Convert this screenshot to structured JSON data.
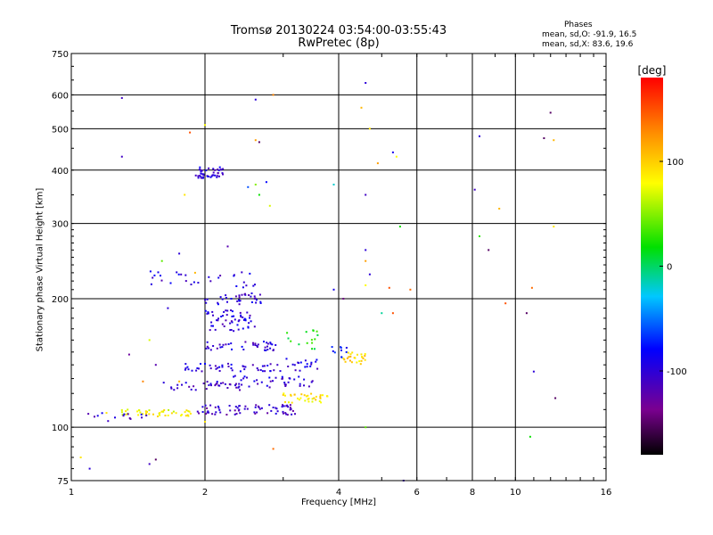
{
  "chart_data": {
    "type": "scatter",
    "title": "Tromsø 20130224 03:54:00-03:55:43",
    "subtitle": "RwPretec (8p)",
    "xlabel": "Frequency [MHz]",
    "ylabel": "Stationary phase Virtual Height [km]",
    "xscale": "log",
    "yscale": "log",
    "xlim": [
      1,
      16
    ],
    "ylim": [
      75,
      750
    ],
    "x_ticks": [
      1,
      2,
      4,
      6,
      8,
      10,
      16
    ],
    "y_ticks": [
      75,
      100,
      200,
      300,
      400,
      500,
      600,
      750
    ],
    "grid": true,
    "phase_info": {
      "heading": "Phases",
      "line1": "mean, sd,O: -91.9, 16.5",
      "line2": "mean, sd,X:  83.6, 19.6"
    },
    "colorbar": {
      "label": "[deg]",
      "range": [
        -180,
        180
      ],
      "ticks": [
        100,
        0,
        -100
      ],
      "colormap": "rainbow (black-purple-blue-cyan-green-yellow-orange-red)"
    },
    "clusters": [
      {
        "x_range": [
          1.3,
          1.9
        ],
        "y": 108,
        "y_spread": 2,
        "phase": 80,
        "n": 45
      },
      {
        "x_range": [
          1.05,
          1.5
        ],
        "y": 105,
        "y_spread": 3,
        "phase": -105,
        "n": 14
      },
      {
        "x_range": [
          1.9,
          3.2
        ],
        "y": 110,
        "y_spread": 3,
        "phase": -110,
        "n": 70
      },
      {
        "x_range": [
          3.0,
          3.8
        ],
        "y": 117,
        "y_spread": 3,
        "phase": 90,
        "n": 35
      },
      {
        "x_range": [
          1.6,
          2.4
        ],
        "y": 125,
        "y_spread": 3,
        "phase": -105,
        "n": 35
      },
      {
        "x_range": [
          2.3,
          3.5
        ],
        "y": 128,
        "y_spread": 4,
        "phase": -100,
        "n": 40
      },
      {
        "x_range": [
          1.8,
          2.8
        ],
        "y": 138,
        "y_spread": 3,
        "phase": -100,
        "n": 40
      },
      {
        "x_range": [
          2.8,
          3.6
        ],
        "y": 140,
        "y_spread": 5,
        "phase": -95,
        "n": 25
      },
      {
        "x_range": [
          2.0,
          2.9
        ],
        "y": 155,
        "y_spread": 4,
        "phase": -100,
        "n": 40
      },
      {
        "x_range": [
          2.0,
          2.6
        ],
        "y": 178,
        "y_spread": 10,
        "phase": -100,
        "n": 55
      },
      {
        "x_range": [
          2.0,
          2.7
        ],
        "y": 200,
        "y_spread": 6,
        "phase": -100,
        "n": 35
      },
      {
        "x_range": [
          1.5,
          2.6
        ],
        "y": 222,
        "y_spread": 10,
        "phase": -100,
        "n": 30
      },
      {
        "x_range": [
          1.9,
          2.2
        ],
        "y": 395,
        "y_spread": 12,
        "phase": -100,
        "n": 45
      },
      {
        "x_range": [
          4.1,
          4.6
        ],
        "y": 145,
        "y_spread": 5,
        "phase": 95,
        "n": 25
      },
      {
        "x_range": [
          3.8,
          4.2
        ],
        "y": 150,
        "y_spread": 6,
        "phase": -80,
        "n": 10
      },
      {
        "x_range": [
          3.0,
          3.6
        ],
        "y": 160,
        "y_spread": 10,
        "phase": 20,
        "n": 15
      }
    ],
    "points": [
      [
        1.3,
        590,
        -110
      ],
      [
        2.6,
        585,
        -100
      ],
      [
        2.85,
        600,
        130
      ],
      [
        1.3,
        430,
        -110
      ],
      [
        2.6,
        470,
        120
      ],
      [
        2.65,
        465,
        -150
      ],
      [
        1.85,
        490,
        150
      ],
      [
        2.0,
        510,
        80
      ],
      [
        4.6,
        640,
        -100
      ],
      [
        4.5,
        560,
        110
      ],
      [
        4.7,
        500,
        90
      ],
      [
        4.9,
        415,
        120
      ],
      [
        5.3,
        440,
        -90
      ],
      [
        5.4,
        430,
        80
      ],
      [
        4.6,
        350,
        -110
      ],
      [
        3.9,
        370,
        -20
      ],
      [
        2.6,
        370,
        50
      ],
      [
        2.5,
        365,
        -60
      ],
      [
        1.8,
        350,
        90
      ],
      [
        2.8,
        330,
        70
      ],
      [
        4.6,
        260,
        -100
      ],
      [
        4.6,
        245,
        120
      ],
      [
        4.7,
        228,
        -100
      ],
      [
        4.6,
        215,
        80
      ],
      [
        5.2,
        212,
        150
      ],
      [
        5.8,
        210,
        140
      ],
      [
        5.5,
        295,
        20
      ],
      [
        5.0,
        185,
        -10
      ],
      [
        5.3,
        185,
        150
      ],
      [
        3.9,
        210,
        -90
      ],
      [
        4.1,
        200,
        -140
      ],
      [
        4.6,
        100,
        40
      ],
      [
        2.85,
        89,
        140
      ],
      [
        1.05,
        85,
        90
      ],
      [
        1.5,
        82,
        -110
      ],
      [
        1.55,
        84,
        -150
      ],
      [
        1.1,
        80,
        -100
      ],
      [
        5.6,
        75,
        -110
      ],
      [
        8.1,
        360,
        -110
      ],
      [
        8.3,
        480,
        -100
      ],
      [
        8.7,
        260,
        -150
      ],
      [
        8.3,
        280,
        30
      ],
      [
        9.2,
        325,
        110
      ],
      [
        10.6,
        185,
        -150
      ],
      [
        10.9,
        212,
        140
      ],
      [
        11.6,
        475,
        -150
      ],
      [
        12.0,
        545,
        -150
      ],
      [
        12.2,
        470,
        110
      ],
      [
        12.2,
        295,
        90
      ],
      [
        12.3,
        117,
        -150
      ],
      [
        11.0,
        135,
        -100
      ],
      [
        10.8,
        95,
        20
      ],
      [
        9.5,
        195,
        150
      ],
      [
        1.2,
        108,
        90
      ],
      [
        1.35,
        148,
        -130
      ],
      [
        1.45,
        128,
        130
      ],
      [
        1.55,
        140,
        -120
      ],
      [
        1.6,
        245,
        40
      ],
      [
        1.65,
        190,
        -100
      ],
      [
        1.5,
        160,
        70
      ],
      [
        1.75,
        255,
        -100
      ],
      [
        1.9,
        230,
        110
      ],
      [
        2.0,
        103,
        90
      ],
      [
        2.25,
        265,
        -120
      ],
      [
        2.75,
        375,
        -80
      ],
      [
        2.65,
        350,
        20
      ],
      [
        1.75,
        128,
        110
      ]
    ]
  }
}
